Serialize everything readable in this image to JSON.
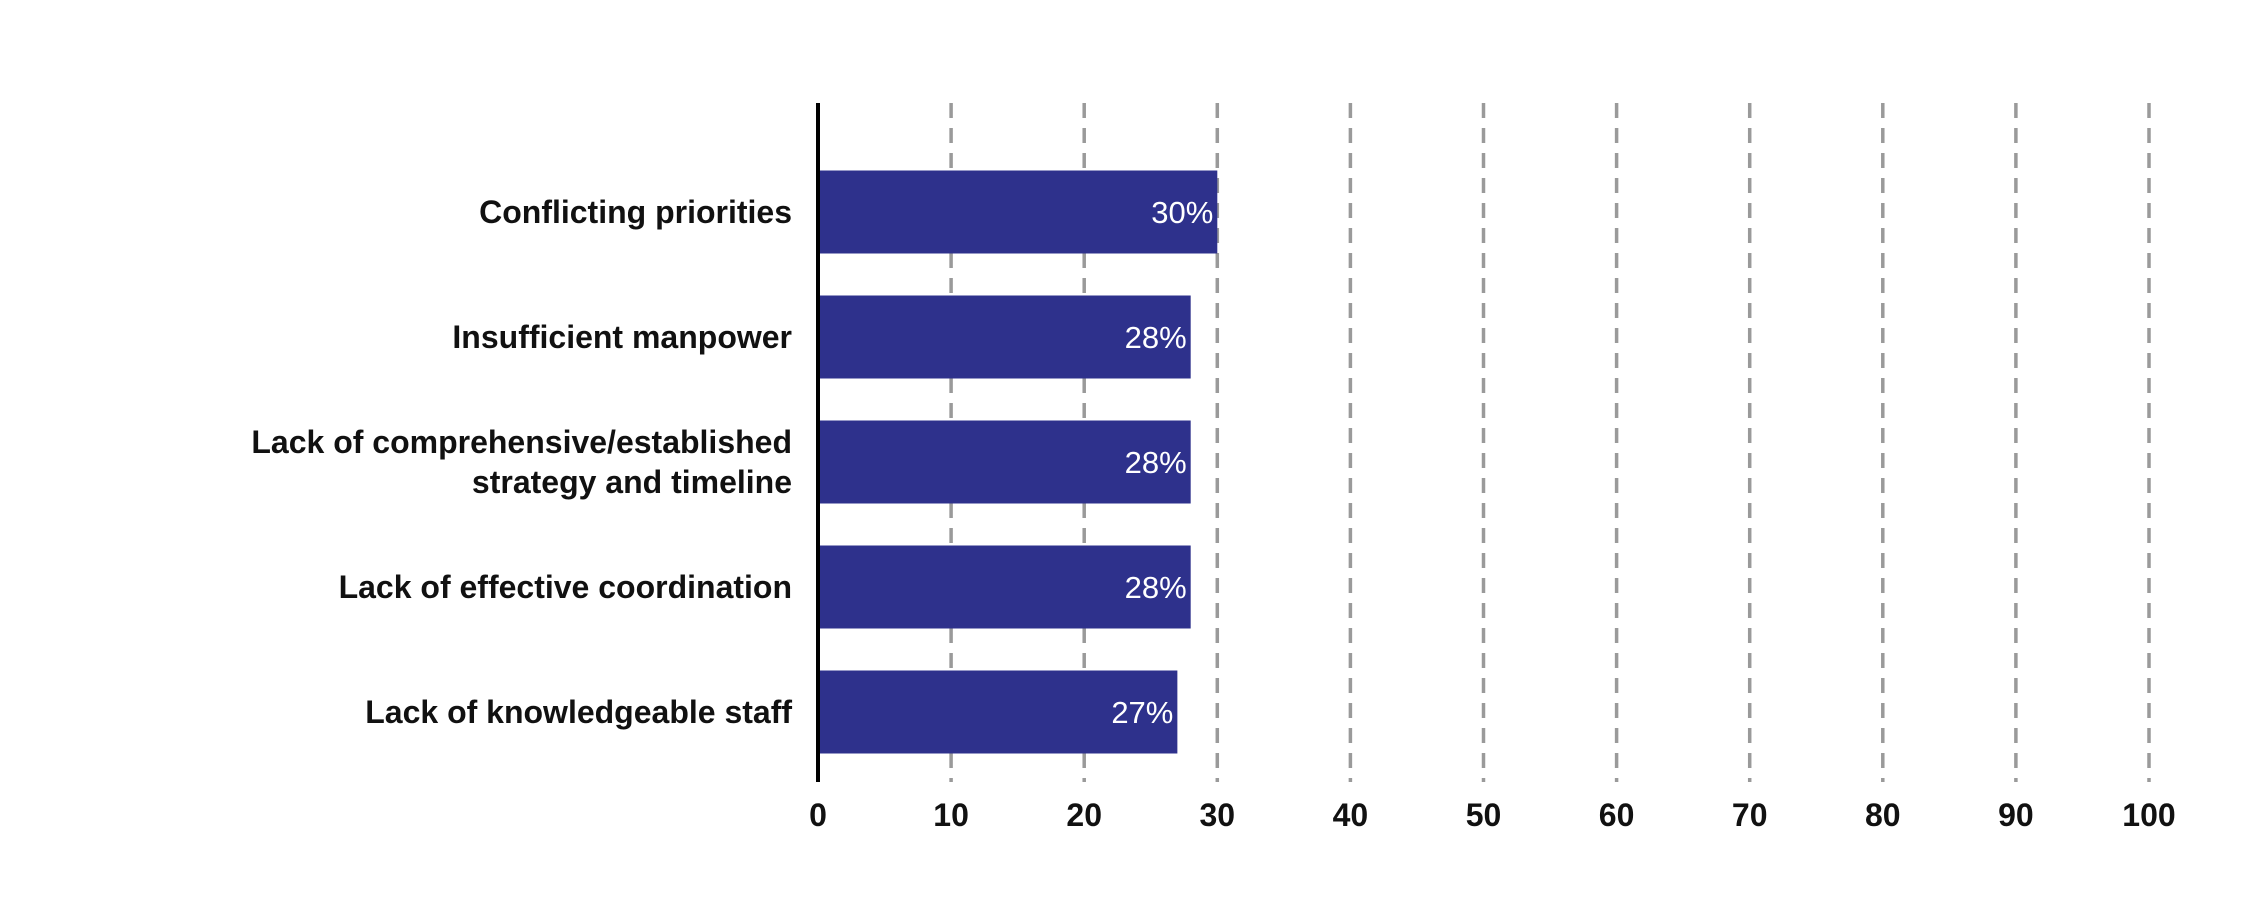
{
  "chart_data": {
    "type": "bar",
    "orientation": "horizontal",
    "categories": [
      "Conflicting priorities",
      "Insufficient manpower",
      "Lack of comprehensive/established strategy and timeline",
      "Lack of effective coordination",
      "Lack of knowledgeable staff"
    ],
    "category_lines": [
      [
        "Conflicting priorities"
      ],
      [
        "Insufficient manpower"
      ],
      [
        "Lack of comprehensive/established",
        "strategy and timeline"
      ],
      [
        "Lack of effective coordination"
      ],
      [
        "Lack of knowledgeable staff"
      ]
    ],
    "values": [
      30,
      28,
      28,
      28,
      27
    ],
    "data_labels": [
      "30%",
      "28%",
      "28%",
      "28%",
      "27%"
    ],
    "xlim": [
      0,
      100
    ],
    "xticks": [
      0,
      10,
      20,
      30,
      40,
      50,
      60,
      70,
      80,
      90,
      100
    ],
    "xtick_labels": [
      "0",
      "10",
      "20",
      "30",
      "40",
      "50",
      "60",
      "70",
      "80",
      "90",
      "100"
    ],
    "grid": "vertical dashed",
    "legend": "none",
    "title": "",
    "xlabel": "",
    "ylabel": "",
    "colors": {
      "bar": "#2e318c",
      "grid": "#9a9a9a",
      "axis": "#000000",
      "bar_label": "#ffffff",
      "text": "#111111"
    }
  }
}
